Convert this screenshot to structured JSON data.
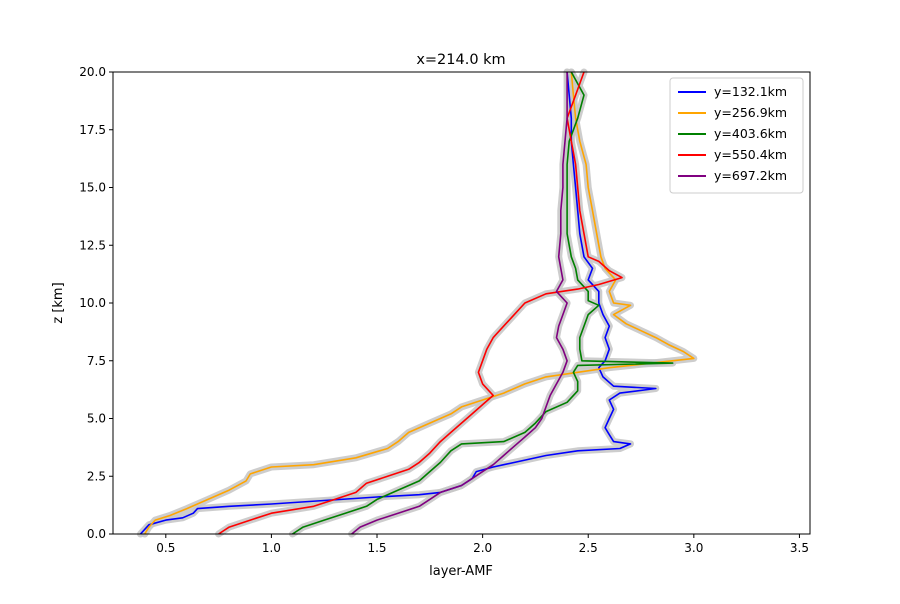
{
  "chart_data": {
    "type": "line",
    "title": "x=214.0 km",
    "xlabel": "layer-AMF",
    "ylabel": "z [km]",
    "xlim": [
      0.25,
      3.55
    ],
    "ylim": [
      0,
      20
    ],
    "xticks": [
      "0.5",
      "1.0",
      "1.5",
      "2.0",
      "2.5",
      "3.0",
      "3.5"
    ],
    "yticks": [
      "0.0",
      "2.5",
      "5.0",
      "7.5",
      "10.0",
      "12.5",
      "15.0",
      "17.5",
      "20.0"
    ],
    "grid": false,
    "legend_position": "top-right",
    "uncertainty_band_color": "#c8c8c8",
    "series": [
      {
        "name": "y=132.1km",
        "color": "#0000ff",
        "points": [
          [
            0.38,
            0
          ],
          [
            0.42,
            0.4
          ],
          [
            0.5,
            0.6
          ],
          [
            0.58,
            0.7
          ],
          [
            0.63,
            0.9
          ],
          [
            0.65,
            1.1
          ],
          [
            0.8,
            1.2
          ],
          [
            1.0,
            1.3
          ],
          [
            1.5,
            1.6
          ],
          [
            1.7,
            1.7
          ],
          [
            1.8,
            1.8
          ],
          [
            1.9,
            2.1
          ],
          [
            1.95,
            2.4
          ],
          [
            1.97,
            2.7
          ],
          [
            2.05,
            2.9
          ],
          [
            2.1,
            3.0
          ],
          [
            2.2,
            3.2
          ],
          [
            2.3,
            3.4
          ],
          [
            2.45,
            3.6
          ],
          [
            2.65,
            3.7
          ],
          [
            2.7,
            3.9
          ],
          [
            2.62,
            4.0
          ],
          [
            2.6,
            4.3
          ],
          [
            2.58,
            4.6
          ],
          [
            2.6,
            5.0
          ],
          [
            2.62,
            5.4
          ],
          [
            2.6,
            5.8
          ],
          [
            2.65,
            6.1
          ],
          [
            2.82,
            6.3
          ],
          [
            2.62,
            6.4
          ],
          [
            2.57,
            6.8
          ],
          [
            2.55,
            7.2
          ],
          [
            2.58,
            7.5
          ],
          [
            2.6,
            8.0
          ],
          [
            2.58,
            8.5
          ],
          [
            2.6,
            9.0
          ],
          [
            2.57,
            9.5
          ],
          [
            2.55,
            10.0
          ],
          [
            2.55,
            10.5
          ],
          [
            2.5,
            11.0
          ],
          [
            2.52,
            11.5
          ],
          [
            2.48,
            12.0
          ],
          [
            2.46,
            13.0
          ],
          [
            2.45,
            14.0
          ],
          [
            2.44,
            15.0
          ],
          [
            2.43,
            16.0
          ],
          [
            2.42,
            17.0
          ],
          [
            2.42,
            18.0
          ],
          [
            2.41,
            19.0
          ],
          [
            2.4,
            20.0
          ]
        ]
      },
      {
        "name": "y=256.9km",
        "color": "#ffa500",
        "points": [
          [
            0.4,
            0
          ],
          [
            0.42,
            0.3
          ],
          [
            0.45,
            0.6
          ],
          [
            0.52,
            0.8
          ],
          [
            0.6,
            1.1
          ],
          [
            0.7,
            1.5
          ],
          [
            0.8,
            1.9
          ],
          [
            0.88,
            2.3
          ],
          [
            0.9,
            2.6
          ],
          [
            1.0,
            2.9
          ],
          [
            1.2,
            3.0
          ],
          [
            1.4,
            3.3
          ],
          [
            1.55,
            3.7
          ],
          [
            1.6,
            4.0
          ],
          [
            1.65,
            4.4
          ],
          [
            1.75,
            4.8
          ],
          [
            1.85,
            5.2
          ],
          [
            1.9,
            5.5
          ],
          [
            2.0,
            5.8
          ],
          [
            2.1,
            6.1
          ],
          [
            2.2,
            6.5
          ],
          [
            2.3,
            6.8
          ],
          [
            2.45,
            7.0
          ],
          [
            2.6,
            7.2
          ],
          [
            2.8,
            7.4
          ],
          [
            3.0,
            7.6
          ],
          [
            2.95,
            7.9
          ],
          [
            2.88,
            8.2
          ],
          [
            2.82,
            8.5
          ],
          [
            2.75,
            8.8
          ],
          [
            2.68,
            9.1
          ],
          [
            2.62,
            9.5
          ],
          [
            2.7,
            9.9
          ],
          [
            2.62,
            10.0
          ],
          [
            2.6,
            10.5
          ],
          [
            2.63,
            11.0
          ],
          [
            2.58,
            11.5
          ],
          [
            2.56,
            12.0
          ],
          [
            2.54,
            13.0
          ],
          [
            2.52,
            14.0
          ],
          [
            2.5,
            15.0
          ],
          [
            2.49,
            16.0
          ],
          [
            2.46,
            17.0
          ],
          [
            2.44,
            18.0
          ],
          [
            2.43,
            19.0
          ],
          [
            2.42,
            20.0
          ]
        ]
      },
      {
        "name": "y=403.6km",
        "color": "#008000",
        "points": [
          [
            1.1,
            0
          ],
          [
            1.15,
            0.3
          ],
          [
            1.25,
            0.6
          ],
          [
            1.35,
            0.9
          ],
          [
            1.45,
            1.2
          ],
          [
            1.5,
            1.5
          ],
          [
            1.6,
            1.9
          ],
          [
            1.7,
            2.3
          ],
          [
            1.75,
            2.7
          ],
          [
            1.8,
            3.1
          ],
          [
            1.85,
            3.6
          ],
          [
            1.9,
            3.9
          ],
          [
            2.1,
            4.0
          ],
          [
            2.2,
            4.4
          ],
          [
            2.25,
            4.8
          ],
          [
            2.3,
            5.3
          ],
          [
            2.4,
            5.7
          ],
          [
            2.45,
            6.2
          ],
          [
            2.45,
            6.6
          ],
          [
            2.43,
            7.0
          ],
          [
            2.45,
            7.3
          ],
          [
            2.9,
            7.4
          ],
          [
            2.47,
            7.5
          ],
          [
            2.46,
            8.0
          ],
          [
            2.46,
            8.5
          ],
          [
            2.48,
            9.0
          ],
          [
            2.5,
            9.5
          ],
          [
            2.55,
            9.9
          ],
          [
            2.5,
            10.1
          ],
          [
            2.5,
            10.5
          ],
          [
            2.45,
            11.0
          ],
          [
            2.44,
            11.5
          ],
          [
            2.42,
            12.0
          ],
          [
            2.4,
            13.0
          ],
          [
            2.4,
            14.0
          ],
          [
            2.4,
            15.0
          ],
          [
            2.4,
            16.0
          ],
          [
            2.41,
            17.0
          ],
          [
            2.45,
            18.0
          ],
          [
            2.48,
            19.0
          ],
          [
            2.42,
            20.0
          ]
        ]
      },
      {
        "name": "y=550.4km",
        "color": "#ff0000",
        "points": [
          [
            0.75,
            0
          ],
          [
            0.8,
            0.3
          ],
          [
            0.9,
            0.6
          ],
          [
            1.0,
            0.9
          ],
          [
            1.2,
            1.2
          ],
          [
            1.3,
            1.5
          ],
          [
            1.4,
            1.8
          ],
          [
            1.45,
            2.2
          ],
          [
            1.55,
            2.5
          ],
          [
            1.65,
            2.8
          ],
          [
            1.7,
            3.1
          ],
          [
            1.75,
            3.5
          ],
          [
            1.8,
            4.0
          ],
          [
            1.85,
            4.4
          ],
          [
            1.9,
            4.8
          ],
          [
            1.95,
            5.2
          ],
          [
            2.0,
            5.6
          ],
          [
            2.05,
            6.0
          ],
          [
            2.0,
            6.5
          ],
          [
            1.98,
            7.0
          ],
          [
            2.0,
            7.5
          ],
          [
            2.02,
            8.0
          ],
          [
            2.05,
            8.5
          ],
          [
            2.1,
            9.0
          ],
          [
            2.15,
            9.5
          ],
          [
            2.2,
            10.0
          ],
          [
            2.3,
            10.4
          ],
          [
            2.45,
            10.6
          ],
          [
            2.55,
            10.8
          ],
          [
            2.66,
            11.1
          ],
          [
            2.6,
            11.4
          ],
          [
            2.55,
            11.8
          ],
          [
            2.5,
            12.0
          ],
          [
            2.48,
            13.0
          ],
          [
            2.46,
            14.0
          ],
          [
            2.45,
            15.0
          ],
          [
            2.44,
            16.0
          ],
          [
            2.42,
            17.0
          ],
          [
            2.4,
            18.0
          ],
          [
            2.44,
            19.0
          ],
          [
            2.48,
            20.0
          ]
        ]
      },
      {
        "name": "y=697.2km",
        "color": "#800080",
        "points": [
          [
            1.38,
            0
          ],
          [
            1.42,
            0.3
          ],
          [
            1.5,
            0.6
          ],
          [
            1.6,
            0.9
          ],
          [
            1.7,
            1.2
          ],
          [
            1.75,
            1.5
          ],
          [
            1.8,
            1.8
          ],
          [
            1.9,
            2.1
          ],
          [
            1.95,
            2.4
          ],
          [
            2.0,
            2.7
          ],
          [
            2.05,
            3.0
          ],
          [
            2.1,
            3.4
          ],
          [
            2.15,
            3.8
          ],
          [
            2.2,
            4.2
          ],
          [
            2.25,
            4.6
          ],
          [
            2.28,
            5.0
          ],
          [
            2.3,
            5.5
          ],
          [
            2.32,
            6.0
          ],
          [
            2.35,
            6.5
          ],
          [
            2.38,
            7.0
          ],
          [
            2.4,
            7.5
          ],
          [
            2.38,
            8.0
          ],
          [
            2.35,
            8.5
          ],
          [
            2.36,
            9.0
          ],
          [
            2.38,
            9.5
          ],
          [
            2.4,
            10.0
          ],
          [
            2.35,
            10.5
          ],
          [
            2.38,
            11.0
          ],
          [
            2.37,
            11.5
          ],
          [
            2.36,
            12.0
          ],
          [
            2.37,
            13.0
          ],
          [
            2.37,
            14.0
          ],
          [
            2.38,
            15.0
          ],
          [
            2.38,
            16.0
          ],
          [
            2.39,
            17.0
          ],
          [
            2.4,
            18.0
          ],
          [
            2.4,
            19.0
          ],
          [
            2.4,
            20.0
          ]
        ]
      }
    ]
  }
}
